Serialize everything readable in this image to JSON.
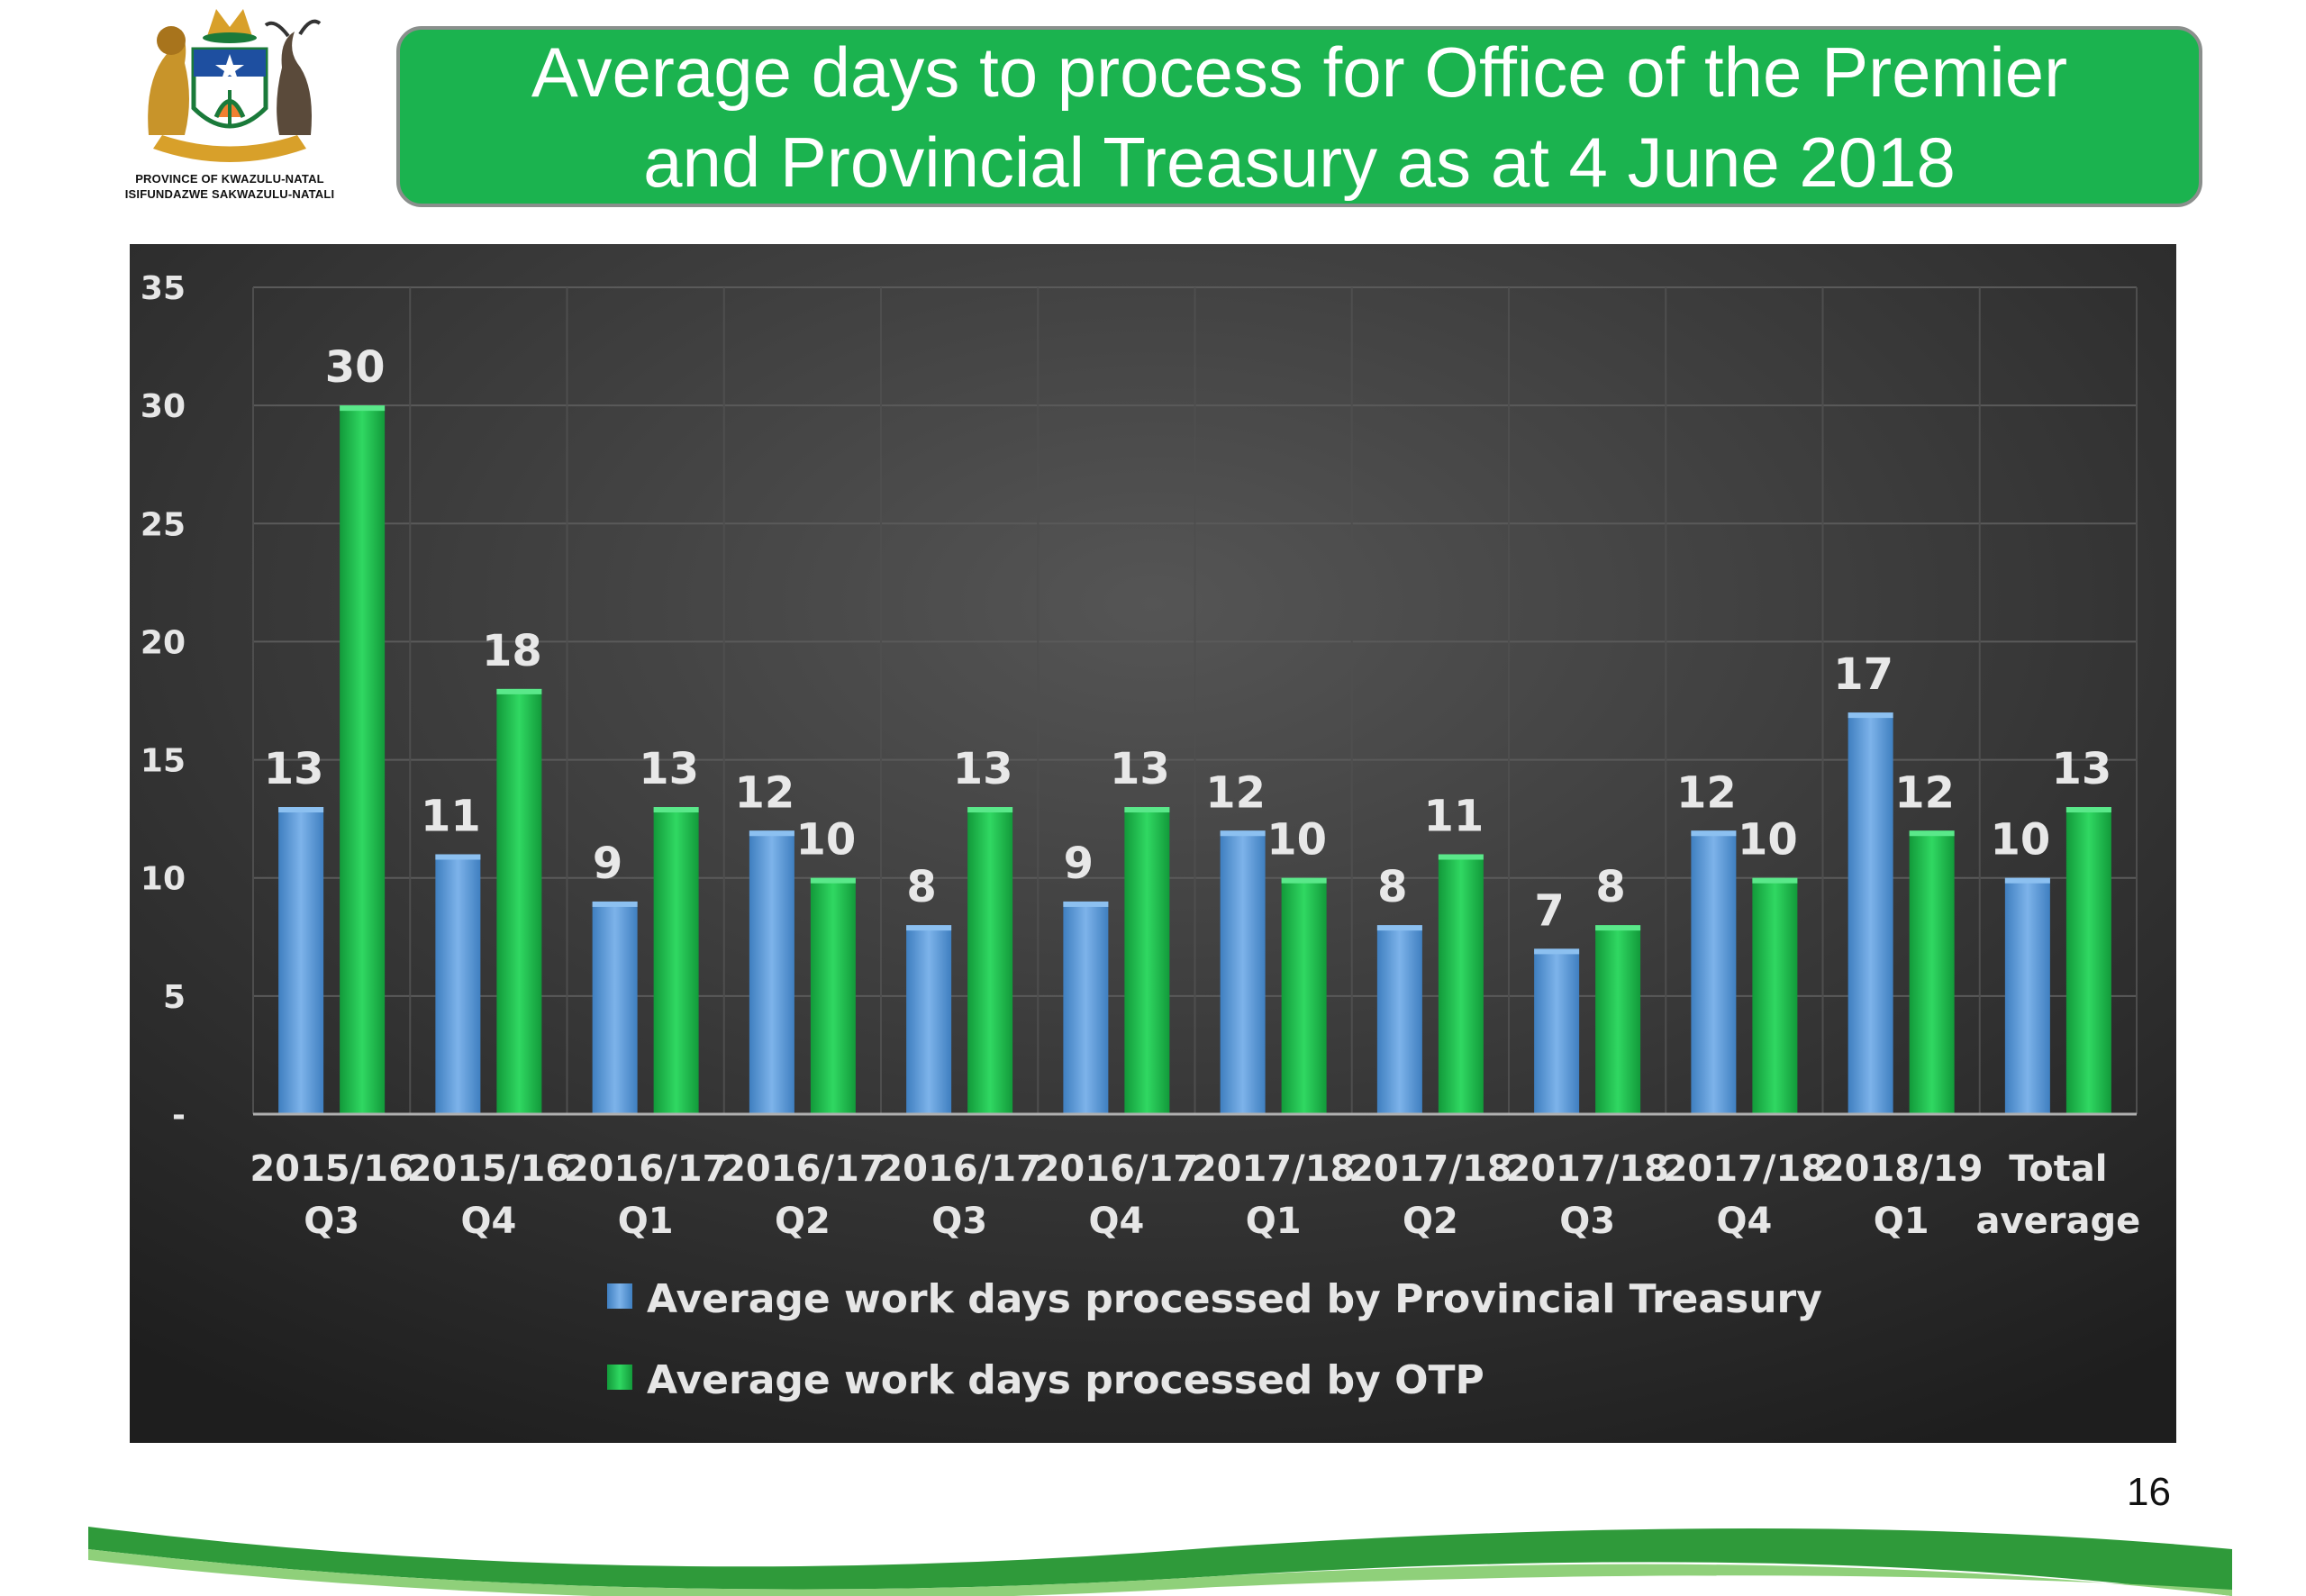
{
  "header": {
    "logo_lines": [
      "PROVINCE OF KWAZULU-NATAL",
      "ISIFUNDAZWE SAKWAZULU-NATALI"
    ],
    "title": "Average days to process for Office of the Premier\nand Provincial Treasury as at 4 June 2018"
  },
  "footer": {
    "page_number": "16"
  },
  "colors": {
    "title_green": "#1bb34f",
    "series_blue": "#5b9bd5",
    "series_green": "#1cb84a",
    "panel_dark": "#3a3a3a"
  },
  "chart_data": {
    "type": "bar",
    "title": "",
    "xlabel": "",
    "ylabel": "",
    "ylim": [
      0,
      35
    ],
    "yticks": [
      0,
      5,
      10,
      15,
      20,
      25,
      30,
      35
    ],
    "ytick_labels": [
      "-",
      "5",
      "10",
      "15",
      "20",
      "25",
      "30",
      "35"
    ],
    "grid": true,
    "legend_placement": "bottom",
    "categories": [
      [
        "2015/16",
        "Q3"
      ],
      [
        "2015/16",
        "Q4"
      ],
      [
        "2016/17",
        "Q1"
      ],
      [
        "2016/17",
        "Q2"
      ],
      [
        "2016/17",
        "Q3"
      ],
      [
        "2016/17",
        "Q4"
      ],
      [
        "2017/18",
        "Q1"
      ],
      [
        "2017/18",
        "Q2"
      ],
      [
        "2017/18",
        "Q3"
      ],
      [
        "2017/18",
        "Q4"
      ],
      [
        "2018/19",
        "Q1"
      ],
      [
        "Total",
        "average"
      ]
    ],
    "series": [
      {
        "name": "Average work days processed by Provincial Treasury",
        "color": "#5b9bd5",
        "values": [
          13,
          11,
          9,
          12,
          8,
          9,
          12,
          8,
          7,
          12,
          17,
          10
        ]
      },
      {
        "name": "Average work days processed by OTP",
        "color": "#1cb84a",
        "values": [
          30,
          18,
          13,
          10,
          13,
          13,
          10,
          11,
          8,
          10,
          12,
          13
        ]
      }
    ]
  }
}
